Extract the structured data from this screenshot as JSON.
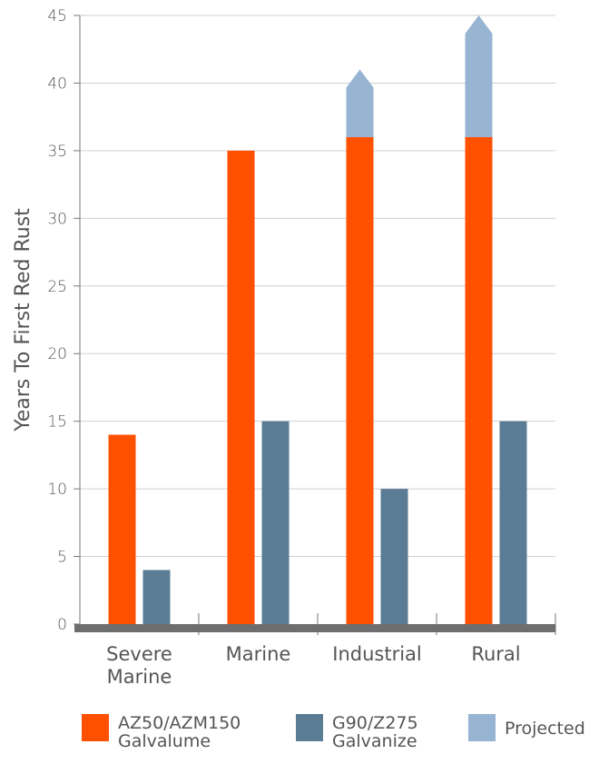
{
  "chart_data": {
    "type": "bar",
    "ylabel": "Years To First Red Rust",
    "ylim": [
      0,
      45
    ],
    "yticks": [
      0,
      5,
      10,
      15,
      20,
      25,
      30,
      35,
      40,
      45
    ],
    "grid": true,
    "legend_position": "bottom",
    "categories": [
      {
        "line1": "Severe",
        "line2": "Marine"
      },
      {
        "line1": "Marine",
        "line2": ""
      },
      {
        "line1": "Industrial",
        "line2": ""
      },
      {
        "line1": "Rural",
        "line2": ""
      }
    ],
    "series": [
      {
        "name_line1": "AZ50/AZM150",
        "name_line2": "Galvalume",
        "color": "#ff5000",
        "values": [
          14,
          35,
          36,
          36
        ]
      },
      {
        "name_line1": "G90/Z275",
        "name_line2": "Galvanize",
        "color": "#5a7c95",
        "values": [
          4,
          15,
          10,
          15
        ]
      },
      {
        "name_line1": "Projected",
        "name_line2": "",
        "color": "#97b4d3",
        "stacked_on": 0,
        "values": [
          0,
          0,
          41,
          45
        ]
      }
    ]
  }
}
